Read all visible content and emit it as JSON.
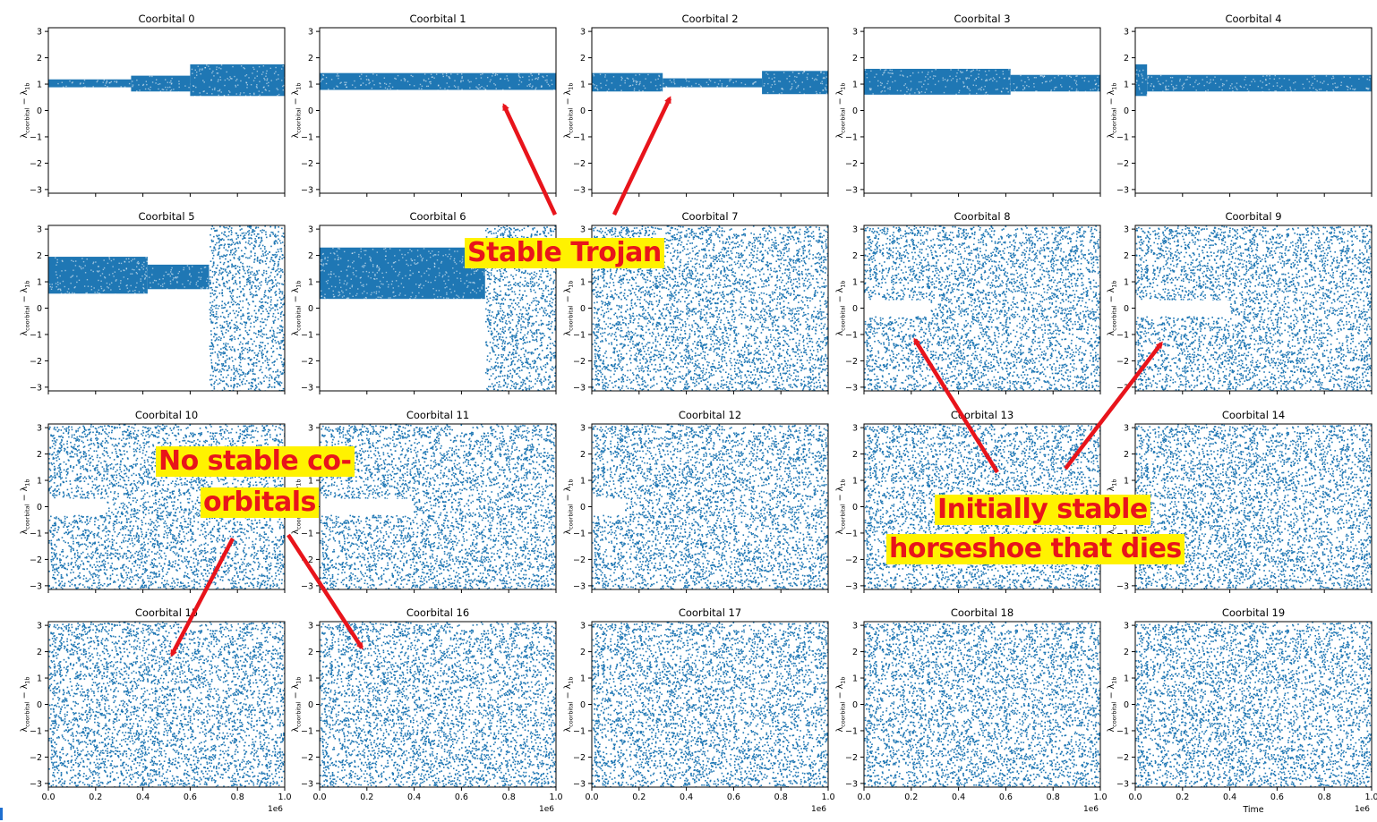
{
  "figure": {
    "ylabel_main": "λ",
    "ylabel_sub1": "coorbital",
    "ylabel_mid": " − λ",
    "ylabel_sub2": "1b",
    "xlabel_bottom": "Time",
    "x_offset_label": "1e6"
  },
  "chart_data": {
    "type": "scatter",
    "layout": "4x5 grid of subplots",
    "x_unit": "1e6",
    "xlim": [
      0.0,
      1.0
    ],
    "ylim": [
      -3.14,
      3.14
    ],
    "xticks": [
      0.0,
      0.2,
      0.4,
      0.6,
      0.8,
      1.0
    ],
    "xtick_labels": [
      "0.0",
      "0.2",
      "0.4",
      "0.6",
      "0.8",
      "1.0"
    ],
    "yticks": [
      -3,
      -2,
      -1,
      0,
      1,
      2,
      3
    ],
    "ytick_labels": [
      "−3",
      "−2",
      "−1",
      "0",
      "1",
      "2",
      "3"
    ],
    "grid": false,
    "marker_color": "#1f77b4",
    "panels": [
      {
        "title": "Coorbital 0",
        "segments": [
          {
            "x0": 0.0,
            "x1": 0.35,
            "lo": 0.88,
            "hi": 1.18,
            "dense": true
          },
          {
            "x0": 0.35,
            "x1": 0.6,
            "lo": 0.72,
            "hi": 1.32,
            "dense": true
          },
          {
            "x0": 0.6,
            "x1": 1.0,
            "lo": 0.55,
            "hi": 1.75,
            "dense": true
          }
        ]
      },
      {
        "title": "Coorbital 1",
        "segments": [
          {
            "x0": 0.0,
            "x1": 1.0,
            "lo": 0.78,
            "hi": 1.42,
            "dense": true
          }
        ]
      },
      {
        "title": "Coorbital 2",
        "segments": [
          {
            "x0": 0.0,
            "x1": 0.3,
            "lo": 0.72,
            "hi": 1.42,
            "dense": true
          },
          {
            "x0": 0.3,
            "x1": 0.72,
            "lo": 0.88,
            "hi": 1.22,
            "dense": true
          },
          {
            "x0": 0.72,
            "x1": 1.0,
            "lo": 0.62,
            "hi": 1.5,
            "dense": true
          }
        ]
      },
      {
        "title": "Coorbital 3",
        "segments": [
          {
            "x0": 0.0,
            "x1": 0.62,
            "lo": 0.6,
            "hi": 1.58,
            "dense": true
          },
          {
            "x0": 0.62,
            "x1": 1.0,
            "lo": 0.72,
            "hi": 1.35,
            "dense": true
          }
        ]
      },
      {
        "title": "Coorbital 4",
        "segments": [
          {
            "x0": 0.0,
            "x1": 0.05,
            "lo": 0.55,
            "hi": 1.75,
            "dense": true
          },
          {
            "x0": 0.05,
            "x1": 1.0,
            "lo": 0.72,
            "hi": 1.35,
            "dense": true
          }
        ]
      },
      {
        "title": "Coorbital 5",
        "segments": [
          {
            "x0": 0.0,
            "x1": 0.42,
            "lo": 0.55,
            "hi": 1.95,
            "dense": true
          },
          {
            "x0": 0.42,
            "x1": 0.68,
            "lo": 0.72,
            "hi": 1.65,
            "dense": true
          },
          {
            "x0": 0.68,
            "x1": 1.0,
            "lo": -3.14,
            "hi": 3.14,
            "dense": false
          }
        ]
      },
      {
        "title": "Coorbital 6",
        "segments": [
          {
            "x0": 0.0,
            "x1": 0.7,
            "lo": 0.35,
            "hi": 2.3,
            "dense": true
          },
          {
            "x0": 0.7,
            "x1": 1.0,
            "lo": -3.14,
            "hi": 3.14,
            "dense": false
          }
        ]
      },
      {
        "title": "Coorbital 7",
        "segments": [
          {
            "x0": 0.0,
            "x1": 1.0,
            "lo": -3.14,
            "hi": 3.14,
            "dense": false
          }
        ]
      },
      {
        "title": "Coorbital 8",
        "segments": [
          {
            "x0": 0.0,
            "x1": 1.0,
            "lo": -3.14,
            "hi": 3.14,
            "dense": false
          }
        ],
        "gap": {
          "x0": 0.0,
          "x1": 0.28,
          "lo": -0.3,
          "hi": 0.3
        }
      },
      {
        "title": "Coorbital 9",
        "segments": [
          {
            "x0": 0.0,
            "x1": 1.0,
            "lo": -3.14,
            "hi": 3.14,
            "dense": false
          }
        ],
        "gap": {
          "x0": 0.0,
          "x1": 0.4,
          "lo": -0.3,
          "hi": 0.3
        }
      },
      {
        "title": "Coorbital 10",
        "segments": [
          {
            "x0": 0.0,
            "x1": 1.0,
            "lo": -3.14,
            "hi": 3.14,
            "dense": false
          }
        ],
        "gap": {
          "x0": 0.0,
          "x1": 0.24,
          "lo": -0.3,
          "hi": 0.3
        }
      },
      {
        "title": "Coorbital 11",
        "segments": [
          {
            "x0": 0.0,
            "x1": 1.0,
            "lo": -3.14,
            "hi": 3.14,
            "dense": false
          }
        ],
        "gap": {
          "x0": 0.0,
          "x1": 0.38,
          "lo": -0.3,
          "hi": 0.3
        }
      },
      {
        "title": "Coorbital 12",
        "segments": [
          {
            "x0": 0.0,
            "x1": 1.0,
            "lo": -3.14,
            "hi": 3.14,
            "dense": false
          }
        ],
        "gap": {
          "x0": 0.0,
          "x1": 0.14,
          "lo": -0.3,
          "hi": 0.3
        }
      },
      {
        "title": "Coorbital 13",
        "segments": [
          {
            "x0": 0.0,
            "x1": 1.0,
            "lo": -3.14,
            "hi": 3.14,
            "dense": false
          }
        ]
      },
      {
        "title": "Coorbital 14",
        "segments": [
          {
            "x0": 0.0,
            "x1": 1.0,
            "lo": -3.14,
            "hi": 3.14,
            "dense": false
          }
        ]
      },
      {
        "title": "Coorbital 15",
        "segments": [
          {
            "x0": 0.0,
            "x1": 1.0,
            "lo": -3.14,
            "hi": 3.14,
            "dense": false
          }
        ]
      },
      {
        "title": "Coorbital 16",
        "segments": [
          {
            "x0": 0.0,
            "x1": 1.0,
            "lo": -3.14,
            "hi": 3.14,
            "dense": false
          }
        ]
      },
      {
        "title": "Coorbital 17",
        "segments": [
          {
            "x0": 0.0,
            "x1": 1.0,
            "lo": -3.14,
            "hi": 3.14,
            "dense": false
          }
        ]
      },
      {
        "title": "Coorbital 18",
        "segments": [
          {
            "x0": 0.0,
            "x1": 1.0,
            "lo": -3.14,
            "hi": 3.14,
            "dense": false
          }
        ]
      },
      {
        "title": "Coorbital 19",
        "segments": [
          {
            "x0": 0.0,
            "x1": 1.0,
            "lo": -3.14,
            "hi": 3.14,
            "dense": false
          }
        ]
      }
    ]
  },
  "annotations": {
    "stable_trojan": "Stable Trojan",
    "no_stable_line1": "No stable co-",
    "no_stable_line2": "orbitals",
    "horseshoe_line1": "Initially stable",
    "horseshoe_line2": "horseshoe that dies",
    "annotation_color": "#e8141b",
    "highlight_color": "#fff200"
  }
}
